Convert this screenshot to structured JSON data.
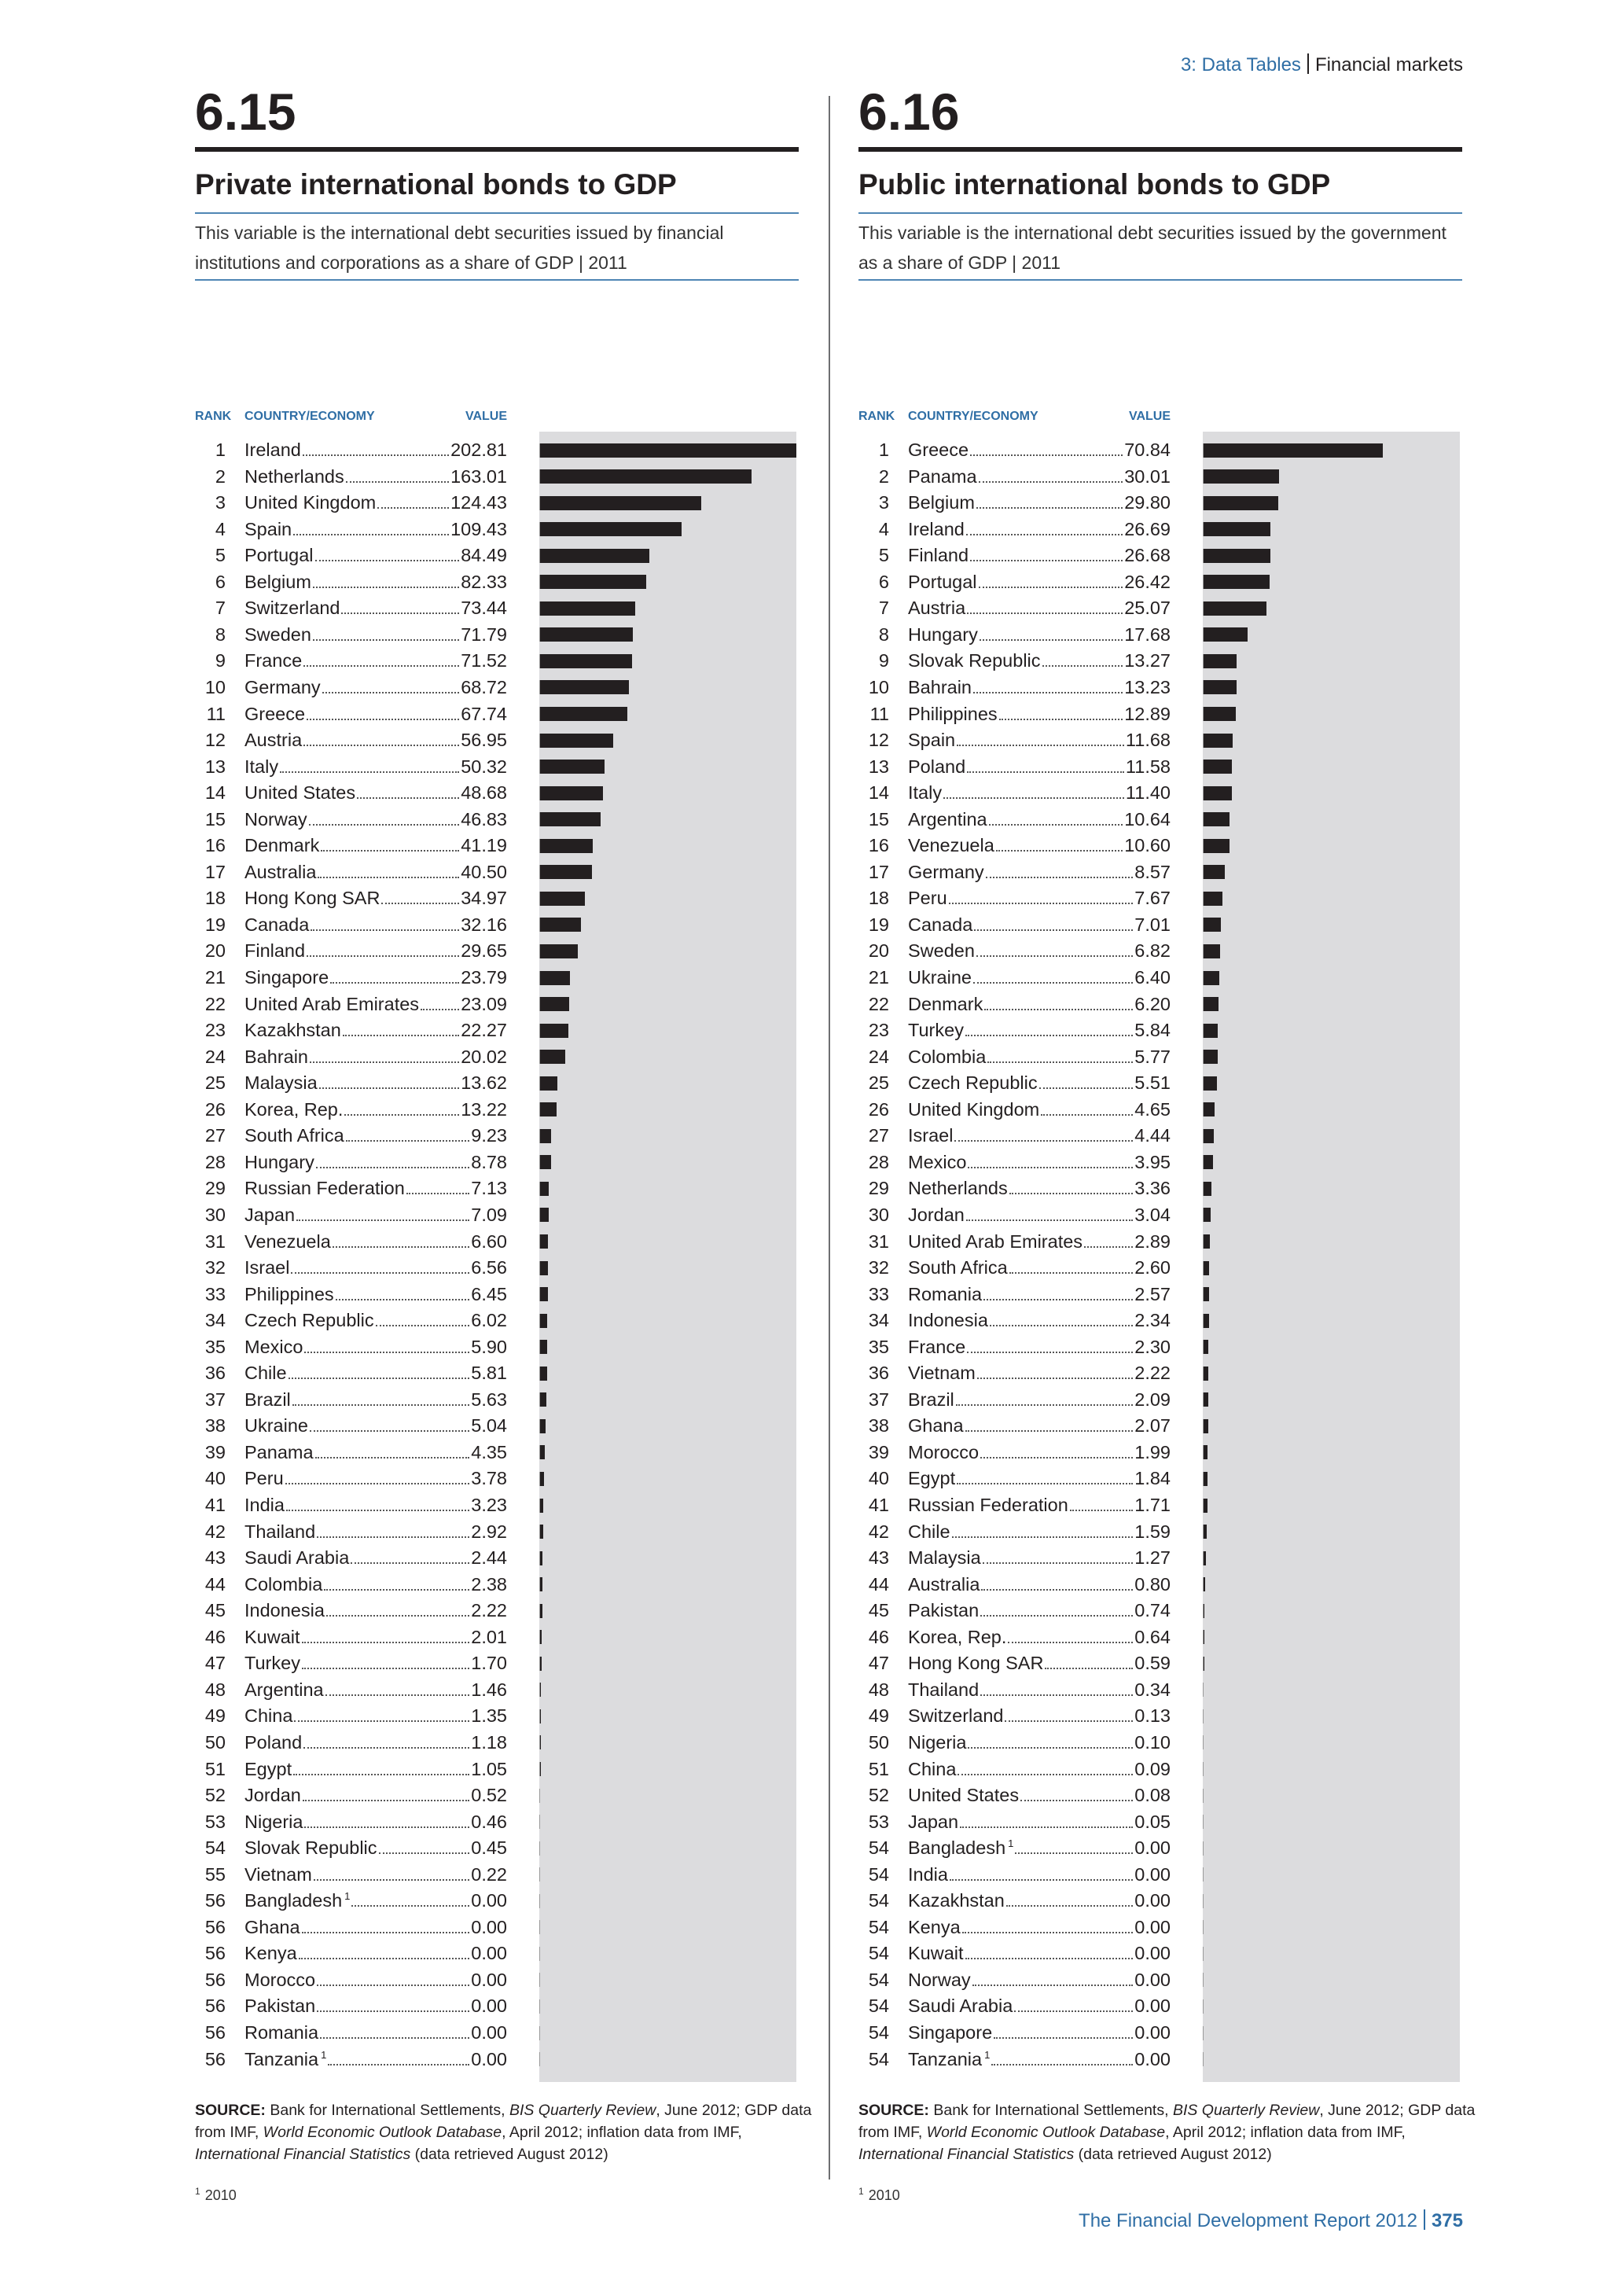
{
  "header": {
    "section": "3: Data Tables",
    "topic": "Financial markets"
  },
  "footer": {
    "report": "The Financial Development Report 2012",
    "page": "375"
  },
  "panels": [
    {
      "number": "6.15",
      "title": "Private international bonds to GDP",
      "description": "This variable is the international debt securities issued by financial institutions and corporations as a share of GDP | 2011",
      "columns": [
        "RANK",
        "COUNTRY/ECONOMY",
        "VALUE"
      ],
      "rows": [
        {
          "rank": 1,
          "country": "Ireland",
          "value": 202.81
        },
        {
          "rank": 2,
          "country": "Netherlands",
          "value": 163.01
        },
        {
          "rank": 3,
          "country": "United Kingdom",
          "value": 124.43
        },
        {
          "rank": 4,
          "country": "Spain",
          "value": 109.43
        },
        {
          "rank": 5,
          "country": "Portugal",
          "value": 84.49
        },
        {
          "rank": 6,
          "country": "Belgium",
          "value": 82.33
        },
        {
          "rank": 7,
          "country": "Switzerland",
          "value": 73.44
        },
        {
          "rank": 8,
          "country": "Sweden",
          "value": 71.79
        },
        {
          "rank": 9,
          "country": "France",
          "value": 71.52
        },
        {
          "rank": 10,
          "country": "Germany",
          "value": 68.72
        },
        {
          "rank": 11,
          "country": "Greece",
          "value": 67.74
        },
        {
          "rank": 12,
          "country": "Austria",
          "value": 56.95
        },
        {
          "rank": 13,
          "country": "Italy",
          "value": 50.32
        },
        {
          "rank": 14,
          "country": "United States",
          "value": 48.68
        },
        {
          "rank": 15,
          "country": "Norway",
          "value": 46.83
        },
        {
          "rank": 16,
          "country": "Denmark",
          "value": 41.19
        },
        {
          "rank": 17,
          "country": "Australia",
          "value": 40.5,
          "value_label": "40.50"
        },
        {
          "rank": 18,
          "country": "Hong Kong SAR",
          "value": 34.97
        },
        {
          "rank": 19,
          "country": "Canada",
          "value": 32.16
        },
        {
          "rank": 20,
          "country": "Finland",
          "value": 29.65
        },
        {
          "rank": 21,
          "country": "Singapore",
          "value": 23.79
        },
        {
          "rank": 22,
          "country": "United Arab Emirates",
          "value": 23.09
        },
        {
          "rank": 23,
          "country": "Kazakhstan",
          "value": 22.27
        },
        {
          "rank": 24,
          "country": "Bahrain",
          "value": 20.02
        },
        {
          "rank": 25,
          "country": "Malaysia",
          "value": 13.62
        },
        {
          "rank": 26,
          "country": "Korea, Rep.",
          "value": 13.22
        },
        {
          "rank": 27,
          "country": "South Africa",
          "value": 9.23
        },
        {
          "rank": 28,
          "country": "Hungary",
          "value": 8.78
        },
        {
          "rank": 29,
          "country": "Russian Federation",
          "value": 7.13
        },
        {
          "rank": 30,
          "country": "Japan",
          "value": 7.09
        },
        {
          "rank": 31,
          "country": "Venezuela",
          "value": 6.6,
          "value_label": "6.60"
        },
        {
          "rank": 32,
          "country": "Israel",
          "value": 6.56
        },
        {
          "rank": 33,
          "country": "Philippines",
          "value": 6.45
        },
        {
          "rank": 34,
          "country": "Czech Republic",
          "value": 6.02
        },
        {
          "rank": 35,
          "country": "Mexico",
          "value": 5.9,
          "value_label": "5.90"
        },
        {
          "rank": 36,
          "country": "Chile",
          "value": 5.81
        },
        {
          "rank": 37,
          "country": "Brazil",
          "value": 5.63
        },
        {
          "rank": 38,
          "country": "Ukraine",
          "value": 5.04
        },
        {
          "rank": 39,
          "country": "Panama",
          "value": 4.35
        },
        {
          "rank": 40,
          "country": "Peru",
          "value": 3.78
        },
        {
          "rank": 41,
          "country": "India",
          "value": 3.23
        },
        {
          "rank": 42,
          "country": "Thailand",
          "value": 2.92
        },
        {
          "rank": 43,
          "country": "Saudi Arabia",
          "value": 2.44
        },
        {
          "rank": 44,
          "country": "Colombia",
          "value": 2.38
        },
        {
          "rank": 45,
          "country": "Indonesia",
          "value": 2.22
        },
        {
          "rank": 46,
          "country": "Kuwait",
          "value": 2.01
        },
        {
          "rank": 47,
          "country": "Turkey",
          "value": 1.7,
          "value_label": "1.70"
        },
        {
          "rank": 48,
          "country": "Argentina",
          "value": 1.46
        },
        {
          "rank": 49,
          "country": "China",
          "value": 1.35
        },
        {
          "rank": 50,
          "country": "Poland",
          "value": 1.18
        },
        {
          "rank": 51,
          "country": "Egypt",
          "value": 1.05
        },
        {
          "rank": 52,
          "country": "Jordan",
          "value": 0.52
        },
        {
          "rank": 53,
          "country": "Nigeria",
          "value": 0.46
        },
        {
          "rank": 54,
          "country": "Slovak Republic",
          "value": 0.45
        },
        {
          "rank": 55,
          "country": "Vietnam",
          "value": 0.22
        },
        {
          "rank": 56,
          "country": "Bangladesh",
          "note": "1",
          "value": 0,
          "value_label": "0.00"
        },
        {
          "rank": 56,
          "country": "Ghana",
          "value": 0,
          "value_label": "0.00"
        },
        {
          "rank": 56,
          "country": "Kenya",
          "value": 0,
          "value_label": "0.00"
        },
        {
          "rank": 56,
          "country": "Morocco",
          "value": 0,
          "value_label": "0.00"
        },
        {
          "rank": 56,
          "country": "Pakistan",
          "value": 0,
          "value_label": "0.00"
        },
        {
          "rank": 56,
          "country": "Romania",
          "value": 0,
          "value_label": "0.00"
        },
        {
          "rank": 56,
          "country": "Tanzania",
          "note": "1",
          "value": 0,
          "value_label": "0.00"
        }
      ],
      "source": {
        "label": "SOURCE:",
        "parts": [
          "Bank for International Settlements, ",
          "BIS Quarterly Review",
          ", June 2012; GDP data from IMF, ",
          "World Economic Outlook Database",
          ", April 2012; inflation data from IMF, ",
          "International Financial Statistics",
          " (data retrieved August 2012)"
        ]
      },
      "footnote": {
        "mark": "1",
        "text": "2010"
      }
    },
    {
      "number": "6.16",
      "title": "Public international bonds to GDP",
      "description": "This variable is the international debt securities issued by the government as a share of GDP | 2011",
      "columns": [
        "RANK",
        "COUNTRY/ECONOMY",
        "VALUE"
      ],
      "rows": [
        {
          "rank": 1,
          "country": "Greece",
          "value": 70.84
        },
        {
          "rank": 2,
          "country": "Panama",
          "value": 30.01
        },
        {
          "rank": 3,
          "country": "Belgium",
          "value": 29.8,
          "value_label": "29.80"
        },
        {
          "rank": 4,
          "country": "Ireland",
          "value": 26.69
        },
        {
          "rank": 5,
          "country": "Finland",
          "value": 26.68
        },
        {
          "rank": 6,
          "country": "Portugal",
          "value": 26.42
        },
        {
          "rank": 7,
          "country": "Austria",
          "value": 25.07
        },
        {
          "rank": 8,
          "country": "Hungary",
          "value": 17.68
        },
        {
          "rank": 9,
          "country": "Slovak Republic",
          "value": 13.27
        },
        {
          "rank": 10,
          "country": "Bahrain",
          "value": 13.23
        },
        {
          "rank": 11,
          "country": "Philippines",
          "value": 12.89
        },
        {
          "rank": 12,
          "country": "Spain",
          "value": 11.68
        },
        {
          "rank": 13,
          "country": "Poland",
          "value": 11.58
        },
        {
          "rank": 14,
          "country": "Italy",
          "value": 11.4,
          "value_label": "11.40"
        },
        {
          "rank": 15,
          "country": "Argentina",
          "value": 10.64
        },
        {
          "rank": 16,
          "country": "Venezuela",
          "value": 10.6,
          "value_label": "10.60"
        },
        {
          "rank": 17,
          "country": "Germany",
          "value": 8.57
        },
        {
          "rank": 18,
          "country": "Peru",
          "value": 7.67
        },
        {
          "rank": 19,
          "country": "Canada",
          "value": 7.01
        },
        {
          "rank": 20,
          "country": "Sweden",
          "value": 6.82
        },
        {
          "rank": 21,
          "country": "Ukraine",
          "value": 6.4,
          "value_label": "6.40"
        },
        {
          "rank": 22,
          "country": "Denmark",
          "value": 6.2,
          "value_label": "6.20"
        },
        {
          "rank": 23,
          "country": "Turkey",
          "value": 5.84
        },
        {
          "rank": 24,
          "country": "Colombia",
          "value": 5.77
        },
        {
          "rank": 25,
          "country": "Czech Republic",
          "value": 5.51
        },
        {
          "rank": 26,
          "country": "United Kingdom",
          "value": 4.65
        },
        {
          "rank": 27,
          "country": "Israel",
          "value": 4.44
        },
        {
          "rank": 28,
          "country": "Mexico",
          "value": 3.95
        },
        {
          "rank": 29,
          "country": "Netherlands",
          "value": 3.36
        },
        {
          "rank": 30,
          "country": "Jordan",
          "value": 3.04
        },
        {
          "rank": 31,
          "country": "United Arab Emirates",
          "value": 2.89
        },
        {
          "rank": 32,
          "country": "South Africa",
          "value": 2.6,
          "value_label": "2.60"
        },
        {
          "rank": 33,
          "country": "Romania",
          "value": 2.57
        },
        {
          "rank": 34,
          "country": "Indonesia",
          "value": 2.34
        },
        {
          "rank": 35,
          "country": "France",
          "value": 2.3,
          "value_label": "2.30"
        },
        {
          "rank": 36,
          "country": "Vietnam",
          "value": 2.22
        },
        {
          "rank": 37,
          "country": "Brazil",
          "value": 2.09
        },
        {
          "rank": 38,
          "country": "Ghana",
          "value": 2.07
        },
        {
          "rank": 39,
          "country": "Morocco",
          "value": 1.99
        },
        {
          "rank": 40,
          "country": "Egypt",
          "value": 1.84
        },
        {
          "rank": 41,
          "country": "Russian Federation",
          "value": 1.71
        },
        {
          "rank": 42,
          "country": "Chile",
          "value": 1.59
        },
        {
          "rank": 43,
          "country": "Malaysia",
          "value": 1.27
        },
        {
          "rank": 44,
          "country": "Australia",
          "value": 0.8,
          "value_label": "0.80"
        },
        {
          "rank": 45,
          "country": "Pakistan",
          "value": 0.74
        },
        {
          "rank": 46,
          "country": "Korea, Rep.",
          "value": 0.64
        },
        {
          "rank": 47,
          "country": "Hong Kong SAR",
          "value": 0.59
        },
        {
          "rank": 48,
          "country": "Thailand",
          "value": 0.34
        },
        {
          "rank": 49,
          "country": "Switzerland",
          "value": 0.13
        },
        {
          "rank": 50,
          "country": "Nigeria",
          "value": 0.1,
          "value_label": "0.10"
        },
        {
          "rank": 51,
          "country": "China",
          "value": 0.09
        },
        {
          "rank": 52,
          "country": "United States",
          "value": 0.08
        },
        {
          "rank": 53,
          "country": "Japan",
          "value": 0.05
        },
        {
          "rank": 54,
          "country": "Bangladesh",
          "note": "1",
          "value": 0,
          "value_label": "0.00"
        },
        {
          "rank": 54,
          "country": "India",
          "value": 0,
          "value_label": "0.00"
        },
        {
          "rank": 54,
          "country": "Kazakhstan",
          "value": 0,
          "value_label": "0.00"
        },
        {
          "rank": 54,
          "country": "Kenya",
          "value": 0,
          "value_label": "0.00"
        },
        {
          "rank": 54,
          "country": "Kuwait",
          "value": 0,
          "value_label": "0.00"
        },
        {
          "rank": 54,
          "country": "Norway",
          "value": 0,
          "value_label": "0.00"
        },
        {
          "rank": 54,
          "country": "Saudi Arabia",
          "value": 0,
          "value_label": "0.00"
        },
        {
          "rank": 54,
          "country": "Singapore",
          "value": 0,
          "value_label": "0.00"
        },
        {
          "rank": 54,
          "country": "Tanzania",
          "note": "1",
          "value": 0,
          "value_label": "0.00"
        }
      ],
      "source": {
        "label": "SOURCE:",
        "parts": [
          "Bank for International Settlements, ",
          "BIS Quarterly Review",
          ", June 2012; GDP data from IMF, ",
          "World Economic Outlook Database",
          ", April 2012; inflation data from IMF, ",
          "International Financial Statistics",
          " (data retrieved August 2012)"
        ]
      },
      "footnote": {
        "mark": "1",
        "text": "2010"
      }
    }
  ]
}
